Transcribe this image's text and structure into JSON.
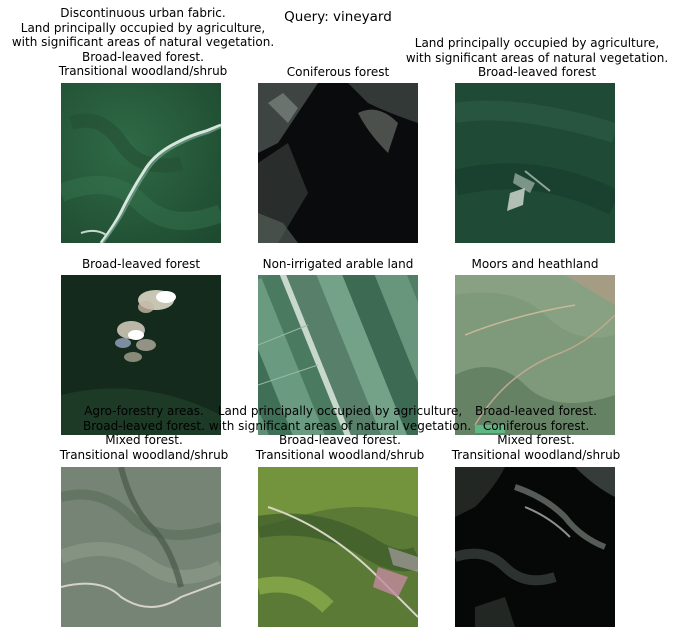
{
  "query": "Query: vineyard",
  "tiles": [
    {
      "labels": [
        "Discontinuous urban fabric.",
        "Land principally occupied by agriculture,",
        "with significant areas of natural vegetation.",
        "Broad-leaved forest.",
        "Transitional woodland/shrub"
      ]
    },
    {
      "labels": [
        "Coniferous forest"
      ]
    },
    {
      "labels": [
        "Land principally occupied by agriculture,",
        "with significant areas of natural vegetation.",
        "Broad-leaved forest"
      ]
    },
    {
      "labels": [
        "Broad-leaved forest"
      ]
    },
    {
      "labels": [
        "Non-irrigated arable land"
      ]
    },
    {
      "labels": [
        "Moors and heathland"
      ]
    },
    {
      "labels": [
        "Agro-forestry areas.",
        "Broad-leaved forest.",
        "Mixed forest.",
        "Transitional woodland/shrub"
      ]
    },
    {
      "labels": [
        "Land principally occupied by agriculture,",
        "with significant areas of natural vegetation.",
        "Broad-leaved forest.",
        "Transitional woodland/shrub"
      ]
    },
    {
      "labels": [
        "Broad-leaved forest.",
        "Coniferous forest.",
        "Mixed forest.",
        "Transitional woodland/shrub"
      ]
    }
  ]
}
